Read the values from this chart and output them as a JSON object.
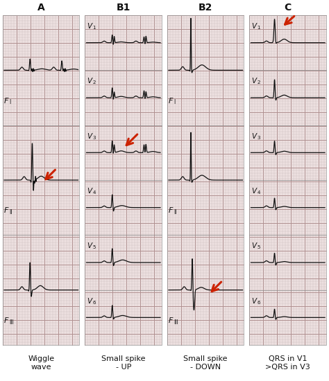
{
  "background_color": "#ffffff",
  "grid_minor_color": "#c8b8b8",
  "grid_major_color": "#b09090",
  "panel_bg": "#ede0e0",
  "ecg_color": "#111111",
  "label_color": "#111111",
  "arrow_color": "#cc2200",
  "col_titles": [
    "A",
    "B1",
    "B2",
    "C"
  ],
  "col_subtitles": [
    "Wiggle\nwave",
    "Small spike\n- UP",
    "Small spike\n- DOWN",
    "QRS in V1\n>QRS in V3"
  ],
  "figsize": [
    4.74,
    5.5
  ],
  "dpi": 100
}
